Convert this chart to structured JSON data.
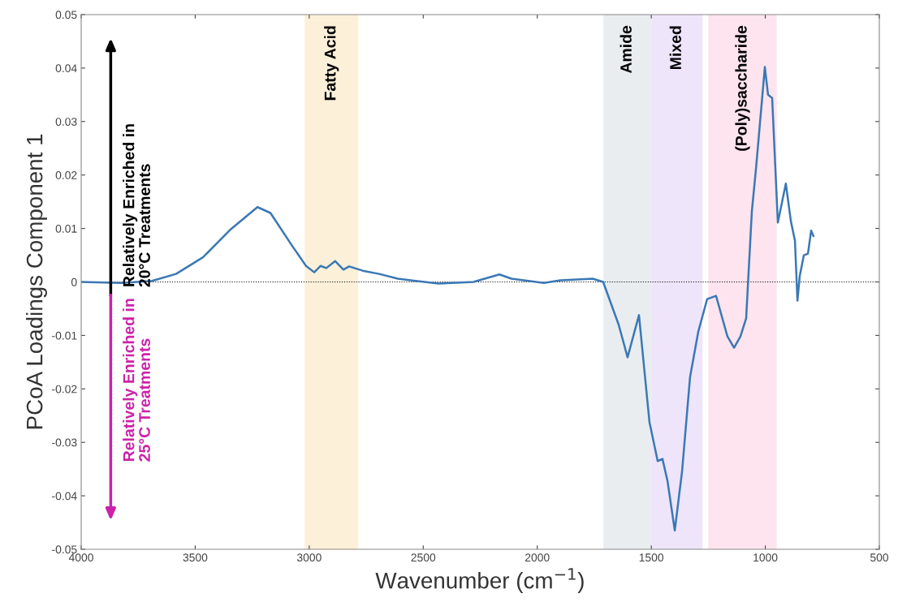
{
  "chart_data": {
    "type": "line",
    "xlabel": "Wavenumber (cm$^{−1}$)",
    "ylabel": "PCoA Loadings Component 1",
    "xlim": [
      4000,
      500
    ],
    "xticks": [
      4000,
      3500,
      3000,
      2500,
      2000,
      1500,
      1000,
      500
    ],
    "ylim": [
      -0.05,
      0.05
    ],
    "yticks": [
      -0.05,
      -0.04,
      -0.03,
      -0.02,
      -0.01,
      0,
      0.01,
      0.02,
      0.03,
      0.04,
      0.05
    ],
    "grid": false,
    "legend": false,
    "marker": "none",
    "line_style": "solid",
    "series": [
      {
        "color": "#3a78b5",
        "x": [
          4000,
          3822,
          3690,
          3584,
          3466,
          3348,
          3227,
          3170,
          3074,
          3014,
          2978,
          2950,
          2925,
          2886,
          2850,
          2825,
          2765,
          2693,
          2611,
          2433,
          2280,
          2166,
          2113,
          1971,
          1899,
          1757,
          1711,
          1643,
          1604,
          1554,
          1508,
          1472,
          1451,
          1429,
          1397,
          1365,
          1330,
          1294,
          1255,
          1216,
          1166,
          1137,
          1109,
          1084,
          1059,
          1041,
          1002,
          988,
          970,
          945,
          910,
          888,
          870,
          859,
          849,
          831,
          813,
          799,
          789
        ],
        "values": [
          0.0,
          -0.0002,
          0.0002,
          0.0015,
          0.0046,
          0.0097,
          0.014,
          0.0129,
          0.0067,
          0.003,
          0.0018,
          0.003,
          0.0026,
          0.0039,
          0.0023,
          0.0029,
          0.0021,
          0.0015,
          0.0006,
          -0.0003,
          0.0,
          0.0014,
          0.0006,
          -0.0002,
          0.0003,
          0.0006,
          0.0,
          -0.008,
          -0.0141,
          -0.0062,
          -0.0262,
          -0.0335,
          -0.0331,
          -0.0372,
          -0.0465,
          -0.0354,
          -0.0178,
          -0.0093,
          -0.0032,
          -0.0026,
          -0.0102,
          -0.0123,
          -0.0102,
          -0.0068,
          0.0132,
          0.0211,
          0.0402,
          0.035,
          0.0344,
          0.0111,
          0.0184,
          0.0114,
          0.0077,
          -0.0035,
          0.0011,
          0.005,
          0.0053,
          0.0096,
          0.0086
        ]
      }
    ],
    "ref_lines": [
      {
        "axis": "y",
        "value": 0,
        "color": "#000000",
        "line_style": "dotted"
      }
    ],
    "bands": [
      {
        "axis": "x",
        "from": 3020,
        "to": 2785,
        "label": "Fatty Acid",
        "color": "#fdf0d9"
      },
      {
        "axis": "x",
        "from": 1710,
        "to": 1500,
        "label": "Amide",
        "color": "#e9edf0"
      },
      {
        "axis": "x",
        "from": 1500,
        "to": 1275,
        "label": "Mixed",
        "color": "#eee5fb"
      },
      {
        "axis": "x",
        "from": 1250,
        "to": 950,
        "label": "(Poly)saccharide",
        "color": "#fde4ee"
      }
    ],
    "annotations": [
      "Relatively Enriched in\n20°C Treatments",
      "Relatively Enriched in\n25°C Treatments"
    ]
  }
}
